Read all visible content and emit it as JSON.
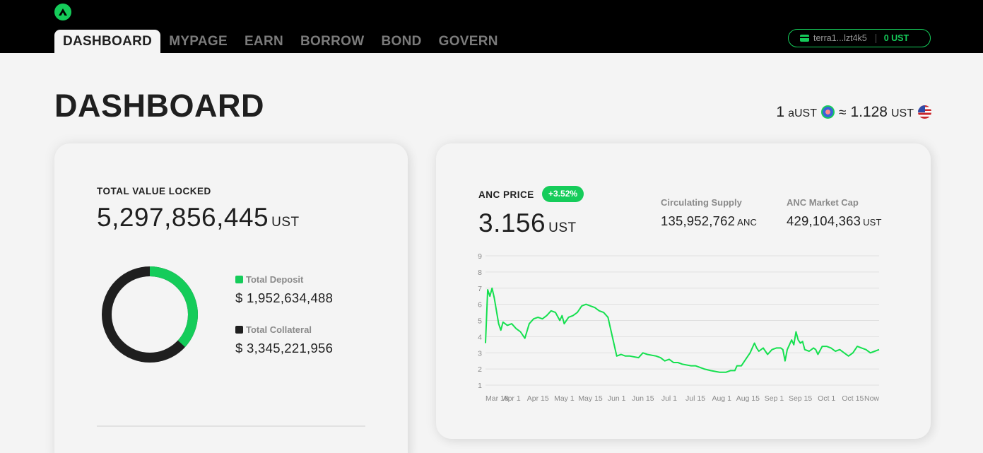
{
  "nav": {
    "tabs": [
      {
        "label": "DASHBOARD"
      },
      {
        "label": "MYPAGE"
      },
      {
        "label": "EARN"
      },
      {
        "label": "BORROW"
      },
      {
        "label": "BOND"
      },
      {
        "label": "GOVERN"
      }
    ],
    "active": "DASHBOARD"
  },
  "wallet": {
    "address": "terra1...lzt4k5",
    "balance": "0 UST",
    "accent_color": "#15cc5a"
  },
  "page": {
    "title": "DASHBOARD"
  },
  "rate": {
    "left_amount": "1",
    "left_unit": "aUST",
    "approx": "≈",
    "right_amount": "1.128",
    "right_unit": "UST"
  },
  "tvl": {
    "label": "TOTAL VALUE LOCKED",
    "value": "5,297,856,445",
    "unit": "UST",
    "legend": [
      {
        "label": "Total Deposit",
        "value": "$ 1,952,634,488",
        "color": "#15cc5a",
        "amount": 1952634488
      },
      {
        "label": "Total Collateral",
        "value": "$ 3,345,221,956",
        "color": "#1f1f1f",
        "amount": 3345221956
      }
    ]
  },
  "anc": {
    "label": "ANC PRICE",
    "change": "+3.52%",
    "price": "3.156",
    "price_unit": "UST",
    "circulating_supply": {
      "label": "Circulating Supply",
      "value": "135,952,762",
      "unit": "ANC"
    },
    "market_cap": {
      "label": "ANC Market Cap",
      "value": "429,104,363",
      "unit": "UST"
    }
  },
  "chart_data": {
    "type": "line",
    "title": "",
    "xlabel": "",
    "ylabel": "",
    "ylim": [
      1,
      9
    ],
    "yticks": [
      "1",
      "2",
      "3",
      "4",
      "5",
      "6",
      "7",
      "8",
      "9"
    ],
    "xticks": [
      "Mar 18",
      "Apr 1",
      "Apr 15",
      "May 1",
      "May 15",
      "Jun 1",
      "Jun 15",
      "Jul 1",
      "Jul 15",
      "Aug 1",
      "Aug 15",
      "Sep 1",
      "Sep 15",
      "Oct 1",
      "Oct 15",
      "Now"
    ],
    "grid": true,
    "color": "#15e04f",
    "series": [
      {
        "values": [
          [
            0,
            3.6
          ],
          [
            1,
            6.9
          ],
          [
            2,
            6.5
          ],
          [
            3,
            7.0
          ],
          [
            4,
            6.4
          ],
          [
            5,
            5.6
          ],
          [
            6,
            4.8
          ],
          [
            7,
            4.4
          ],
          [
            8,
            4.9
          ],
          [
            10,
            4.7
          ],
          [
            12,
            4.8
          ],
          [
            14,
            4.5
          ],
          [
            16,
            4.3
          ],
          [
            18,
            3.9
          ],
          [
            20,
            4.8
          ],
          [
            22,
            5.1
          ],
          [
            24,
            5.2
          ],
          [
            26,
            5.1
          ],
          [
            28,
            5.3
          ],
          [
            30,
            5.6
          ],
          [
            32,
            5.5
          ],
          [
            34,
            5.0
          ],
          [
            35,
            5.3
          ],
          [
            36,
            4.8
          ],
          [
            38,
            5.2
          ],
          [
            40,
            5.3
          ],
          [
            42,
            5.5
          ],
          [
            44,
            5.9
          ],
          [
            46,
            6.0
          ],
          [
            48,
            5.9
          ],
          [
            50,
            5.8
          ],
          [
            52,
            5.6
          ],
          [
            54,
            5.5
          ],
          [
            56,
            5.2
          ],
          [
            57,
            4.6
          ],
          [
            58,
            4.0
          ],
          [
            59,
            3.4
          ],
          [
            60,
            2.8
          ],
          [
            62,
            2.9
          ],
          [
            64,
            2.8
          ],
          [
            66,
            2.8
          ],
          [
            70,
            2.7
          ],
          [
            72,
            3.0
          ],
          [
            74,
            2.9
          ],
          [
            78,
            2.8
          ],
          [
            80,
            2.7
          ],
          [
            82,
            2.5
          ],
          [
            84,
            2.6
          ],
          [
            86,
            2.4
          ],
          [
            88,
            2.4
          ],
          [
            90,
            2.3
          ],
          [
            94,
            2.2
          ],
          [
            96,
            2.2
          ],
          [
            98,
            2.1
          ],
          [
            100,
            2.0
          ],
          [
            103,
            1.9
          ],
          [
            107,
            1.8
          ],
          [
            110,
            1.8
          ],
          [
            112,
            1.9
          ],
          [
            114,
            1.9
          ],
          [
            115,
            2.2
          ],
          [
            117,
            2.2
          ],
          [
            119,
            2.6
          ],
          [
            121,
            3.0
          ],
          [
            123,
            3.6
          ],
          [
            124,
            3.3
          ],
          [
            125,
            3.1
          ],
          [
            127,
            3.3
          ],
          [
            129,
            2.9
          ],
          [
            131,
            3.2
          ],
          [
            133,
            3.3
          ],
          [
            135,
            3.3
          ],
          [
            136,
            3.2
          ],
          [
            137,
            2.5
          ],
          [
            138,
            3.2
          ],
          [
            139,
            3.5
          ],
          [
            140,
            3.8
          ],
          [
            141,
            3.5
          ],
          [
            142,
            4.3
          ],
          [
            143,
            3.8
          ],
          [
            144,
            3.6
          ],
          [
            145,
            3.7
          ],
          [
            146,
            3.2
          ],
          [
            148,
            3.1
          ],
          [
            150,
            3.3
          ],
          [
            151,
            3.2
          ],
          [
            152,
            2.9
          ],
          [
            154,
            3.4
          ],
          [
            156,
            3.4
          ],
          [
            158,
            3.3
          ],
          [
            160,
            3.1
          ],
          [
            162,
            3.2
          ],
          [
            164,
            3.0
          ],
          [
            166,
            2.8
          ],
          [
            168,
            3.0
          ],
          [
            170,
            3.4
          ],
          [
            172,
            3.3
          ],
          [
            174,
            3.2
          ],
          [
            176,
            3.0
          ],
          [
            178,
            3.1
          ],
          [
            180,
            3.2
          ]
        ]
      }
    ]
  }
}
